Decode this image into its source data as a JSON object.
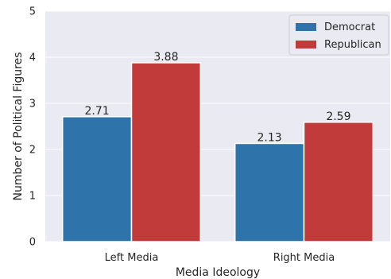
{
  "chart_data": {
    "type": "bar",
    "categories": [
      "Left Media",
      "Right Media"
    ],
    "series": [
      {
        "name": "Democrat",
        "values": [
          2.71,
          2.13
        ],
        "color": "#2e74aa"
      },
      {
        "name": "Republican",
        "values": [
          3.88,
          2.59
        ],
        "color": "#c23b3b"
      }
    ],
    "data_labels": [
      [
        "2.71",
        "2.13"
      ],
      [
        "3.88",
        "2.59"
      ]
    ],
    "xlabel": "Media Ideology",
    "ylabel": "Number of Political Figures",
    "ylim": [
      0,
      5
    ],
    "yticks": [
      "0",
      "1",
      "2",
      "3",
      "4",
      "5"
    ],
    "grid": true,
    "legend_position": "top-right",
    "background_color": "#eaeaf2",
    "grid_color": "#ffffff"
  }
}
